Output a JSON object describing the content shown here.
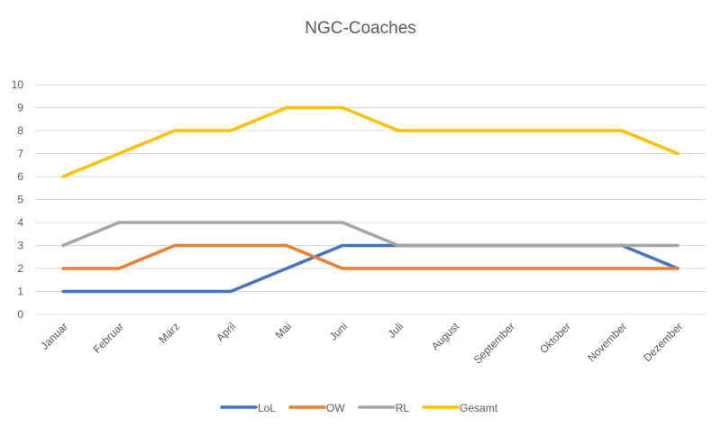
{
  "chart_data": {
    "type": "line",
    "title": "NGC-Coaches",
    "xlabel": "",
    "ylabel": "",
    "ylim": [
      0,
      10
    ],
    "yticks": [
      0,
      1,
      2,
      3,
      4,
      5,
      6,
      7,
      8,
      9,
      10
    ],
    "grid": true,
    "legend_position": "bottom",
    "categories": [
      "Januar",
      "Februar",
      "März",
      "April",
      "Mai",
      "Juni",
      "Juli",
      "August",
      "September",
      "Oktober",
      "November",
      "Dezember"
    ],
    "series": [
      {
        "name": "LoL",
        "color": "#4472C4",
        "values": [
          1,
          1,
          1,
          1,
          2,
          3,
          3,
          3,
          3,
          3,
          3,
          2
        ]
      },
      {
        "name": "OW",
        "color": "#ED7D31",
        "values": [
          2,
          2,
          3,
          3,
          3,
          2,
          2,
          2,
          2,
          2,
          2,
          2
        ]
      },
      {
        "name": "RL",
        "color": "#A5A5A5",
        "values": [
          3,
          4,
          4,
          4,
          4,
          4,
          3,
          3,
          3,
          3,
          3,
          3
        ]
      },
      {
        "name": "Gesamt",
        "color": "#FFC000",
        "values": [
          6,
          7,
          8,
          8,
          9,
          9,
          8,
          8,
          8,
          8,
          8,
          7
        ]
      }
    ]
  }
}
